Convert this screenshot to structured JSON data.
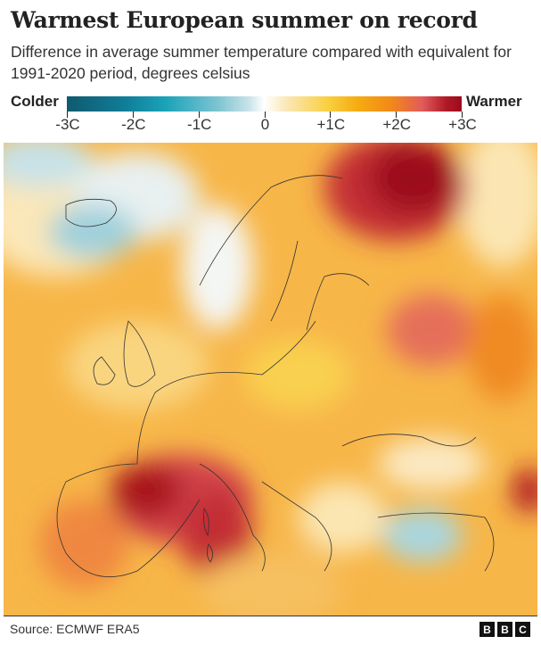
{
  "header": {
    "title": "Warmest European summer on record",
    "subtitle": "Difference in average summer temperature compared with equivalent for 1991-2020 period, degrees celsius"
  },
  "legend": {
    "low_label": "Colder",
    "high_label": "Warmer",
    "ticks": [
      "-3C",
      "-2C",
      "-1C",
      "0",
      "+1C",
      "+2C",
      "+3C"
    ],
    "range": [
      -3,
      3
    ],
    "colors": {
      "cold": "#0f5a6e",
      "neutral": "#ffffff",
      "mid_warm": "#f5aa10",
      "hot": "#9c0b1b"
    }
  },
  "footer": {
    "source": "Source: ECMWF ERA5",
    "logo_letters": [
      "B",
      "B",
      "C"
    ]
  }
}
